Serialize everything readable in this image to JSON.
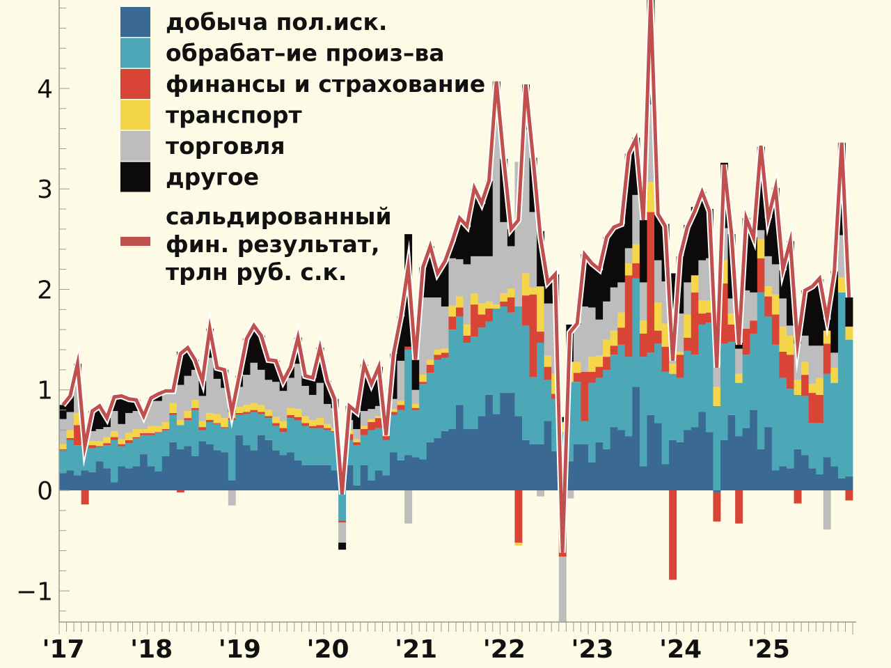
{
  "chart_data": {
    "type": "bar",
    "stacked": true,
    "title": "",
    "xlabel": "",
    "ylabel": "",
    "x_start": "2017-01",
    "x_end": "2025-12",
    "frequency": "monthly",
    "ylim": [
      -1.31,
      4.88
    ],
    "y_ticks": [
      -1,
      0,
      1,
      2,
      3,
      4
    ],
    "y_tick_labels": [
      "−1",
      "0",
      "1",
      "2",
      "3",
      "4"
    ],
    "x_tick_labels": [
      "'17",
      "'18",
      "'19",
      "'20",
      "'21",
      "'22",
      "'23",
      "'24",
      "'25"
    ],
    "grid": false,
    "legend_placement": "top-left",
    "background": "#fdfbe6",
    "series": [
      {
        "name": "добыча пол.иск.",
        "color": "#3a6a93",
        "values": [
          0.17,
          0.2,
          0.15,
          0.2,
          0.18,
          0.29,
          0.22,
          0.08,
          0.24,
          0.22,
          0.24,
          0.36,
          0.24,
          0.19,
          0.34,
          0.48,
          0.41,
          0.44,
          0.34,
          0.49,
          0.46,
          0.4,
          0.38,
          0.1,
          0.55,
          0.45,
          0.4,
          0.55,
          0.5,
          0.4,
          0.35,
          0.38,
          0.3,
          0.25,
          0.25,
          0.25,
          0.25,
          0.2,
          0.0,
          0.25,
          0.05,
          0.25,
          0.1,
          0.2,
          0.15,
          0.38,
          0.3,
          0.35,
          0.33,
          0.31,
          0.48,
          0.52,
          0.59,
          0.61,
          0.85,
          0.61,
          0.61,
          0.74,
          0.95,
          0.76,
          0.97,
          0.97,
          0.74,
          0.5,
          0.46,
          0.46,
          0.69,
          0.39,
          0.02,
          0.29,
          0.46,
          0.46,
          0.28,
          0.48,
          0.41,
          0.63,
          0.6,
          0.54,
          1.03,
          0.24,
          0.75,
          0.67,
          0.26,
          0.5,
          0.48,
          0.6,
          0.63,
          0.78,
          0.58,
          -0.02,
          0.5,
          0.75,
          0.54,
          0.62,
          0.8,
          0.41,
          0.63,
          0.2,
          0.24,
          0.22,
          0.41,
          0.35,
          0.22,
          0.16,
          0.33,
          0.24,
          0.12,
          0.14
        ]
      },
      {
        "name": "обрабат–ие произ–ва",
        "color": "#4ca7b7",
        "values": [
          0.22,
          0.3,
          0.3,
          0.24,
          0.24,
          0.14,
          0.23,
          0.42,
          0.2,
          0.25,
          0.28,
          0.19,
          0.31,
          0.38,
          0.26,
          0.27,
          0.24,
          0.26,
          0.46,
          0.11,
          0.22,
          0.26,
          0.24,
          0.6,
          0.2,
          0.31,
          0.38,
          0.21,
          0.22,
          0.24,
          0.23,
          0.34,
          0.4,
          0.39,
          0.37,
          0.37,
          0.35,
          0.38,
          -0.3,
          0.25,
          0.4,
          0.3,
          0.5,
          0.42,
          0.35,
          0.37,
          0.5,
          1.05,
          0.47,
          0.75,
          0.69,
          0.78,
          0.73,
          0.99,
          0.88,
          0.86,
          0.92,
          0.88,
          0.73,
          1.05,
          0.86,
          0.8,
          1.09,
          1.14,
          0.67,
          1.01,
          0.41,
          0.52,
          0.56,
          0.79,
          0.62,
          0.23,
          0.79,
          0.64,
          0.79,
          0.72,
          0.85,
          0.79,
          1.08,
          1.09,
          0.62,
          0.79,
          0.92,
          0.66,
          0.64,
          0.79,
          0.72,
          0.87,
          1.09,
          0.84,
          0.96,
          0.73,
          0.53,
          0.73,
          0.76,
          1.56,
          1.1,
          1.25,
          0.88,
          0.79,
          0.54,
          0.59,
          0.45,
          0.51,
          0.83,
          0.83,
          1.85,
          1.36
        ]
      },
      {
        "name": "финансы и страхование",
        "color": "#d84435",
        "values": [
          0.02,
          0.02,
          0.2,
          -0.14,
          0.03,
          0.01,
          0.02,
          0.03,
          0.02,
          0.03,
          0.01,
          0.02,
          0.02,
          0.01,
          0.01,
          0.02,
          -0.02,
          0.02,
          0.02,
          0.03,
          0.02,
          0.01,
          0.01,
          0.02,
          0.02,
          0.02,
          0.02,
          0.02,
          0.02,
          0.03,
          0.04,
          0.03,
          0.03,
          0.03,
          0.02,
          0.03,
          0.02,
          0.01,
          -0.02,
          0.06,
          0.03,
          0.06,
          0.08,
          0.1,
          0.04,
          0.03,
          0.05,
          0.03,
          0.02,
          0.02,
          0.08,
          0.05,
          0.05,
          0.13,
          0.09,
          0.07,
          0.32,
          0.13,
          0.13,
          0.0,
          0.05,
          0.15,
          -0.52,
          0.3,
          0.82,
          0.11,
          0.13,
          0.05,
          -0.66,
          0.0,
          0.09,
          0.49,
          0.11,
          0.11,
          0.13,
          0.09,
          0.17,
          0.81,
          0.15,
          0.23,
          1.4,
          0.13,
          0.25,
          -0.89,
          0.23,
          0.13,
          0.62,
          0.11,
          0.1,
          -0.29,
          0.6,
          0.17,
          -0.33,
          0.26,
          0.13,
          0.34,
          0.2,
          0.3,
          0.26,
          0.34,
          -0.13,
          0.21,
          0.3,
          0.28,
          0.3,
          0.0,
          0.0,
          -0.1
        ]
      },
      {
        "name": "транспорт",
        "color": "#f5d64a",
        "values": [
          0.05,
          0.08,
          0.12,
          0.03,
          0.04,
          0.05,
          0.06,
          0.06,
          0.05,
          0.07,
          0.08,
          0.04,
          0.07,
          0.06,
          0.07,
          0.1,
          0.05,
          0.07,
          0.08,
          0.06,
          0.07,
          0.09,
          0.09,
          0.06,
          0.06,
          0.07,
          0.07,
          0.07,
          0.06,
          0.06,
          0.07,
          0.07,
          0.08,
          0.07,
          0.06,
          0.07,
          0.04,
          0.03,
          0.0,
          0.04,
          0.03,
          0.03,
          0.03,
          0.02,
          0.03,
          0.03,
          0.04,
          0.0,
          0.04,
          0.07,
          0.05,
          0.05,
          0.04,
          0.11,
          0.11,
          0.11,
          0.11,
          0.11,
          0.07,
          0.04,
          0.08,
          0.09,
          -0.03,
          0.22,
          0.07,
          0.45,
          0.11,
          0.2,
          0.1,
          0.2,
          0.11,
          0.0,
          0.15,
          0.11,
          0.17,
          0.15,
          0.15,
          0.12,
          0.19,
          0.13,
          0.3,
          0.28,
          0.23,
          0.1,
          0.03,
          0.23,
          0.17,
          0.13,
          0.12,
          0.19,
          0.23,
          0.11,
          0.09,
          0.0,
          0.0,
          0.19,
          0.1,
          0.2,
          0.25,
          0.19,
          0.15,
          0.13,
          0.09,
          0.17,
          0.13,
          0.15,
          0.15,
          0.13
        ]
      },
      {
        "name": "торговля",
        "color": "#bdbdbd",
        "values": [
          0.25,
          0.18,
          0.3,
          0.11,
          0.1,
          0.12,
          0.1,
          0.2,
          0.15,
          0.2,
          0.18,
          0.13,
          0.25,
          0.25,
          0.3,
          0.12,
          0.35,
          0.35,
          0.3,
          0.25,
          0.55,
          0.35,
          0.3,
          -0.15,
          0.2,
          0.3,
          0.4,
          0.35,
          0.3,
          0.35,
          0.3,
          0.3,
          0.45,
          0.3,
          0.25,
          0.35,
          0.2,
          0.2,
          -0.2,
          0.1,
          0.1,
          0.15,
          0.1,
          0.1,
          0.0,
          0.1,
          0.4,
          -0.33,
          0.14,
          0.77,
          0.62,
          0.52,
          0.42,
          0.47,
          0.37,
          0.6,
          0.37,
          0.47,
          0.45,
          2.0,
          0.71,
          0.42,
          1.44,
          1.43,
          0.75,
          -0.06,
          0.52,
          0.7,
          -0.65,
          -0.08,
          0.37,
          0.65,
          0.49,
          0.36,
          0.38,
          0.43,
          0.3,
          0.15,
          0.49,
          0.38,
          0.77,
          0.42,
          0.42,
          0.4,
          0.38,
          0.32,
          0.0,
          0.4,
          0.42,
          0.21,
          0.32,
          0.15,
          0.25,
          0.38,
          0.28,
          0.09,
          0.3,
          0.3,
          0.28,
          0.1,
          0.36,
          0.26,
          0.38,
          0.32,
          -0.39,
          0.15,
          0.42,
          0.0
        ]
      },
      {
        "name": "другое",
        "color": "#0c0a0a",
        "values": [
          0.14,
          0.16,
          0.19,
          0.0,
          0.2,
          0.23,
          0.09,
          0.14,
          0.28,
          0.14,
          0.11,
          0.0,
          0.03,
          0.07,
          0.01,
          0.0,
          0.33,
          0.28,
          0.1,
          0.15,
          0.29,
          0.11,
          0.18,
          0.15,
          0.11,
          0.36,
          0.37,
          0.34,
          0.2,
          0.21,
          0.1,
          0.11,
          0.26,
          0.1,
          0.17,
          0.35,
          0.23,
          0.09,
          -0.07,
          0.14,
          0.17,
          0.46,
          0.25,
          0.39,
          0.0,
          0.45,
          0.44,
          1.12,
          0.3,
          0.3,
          0.51,
          0.24,
          0.45,
          0.17,
          0.39,
          0.37,
          0.67,
          0.52,
          0.75,
          0.22,
          0.63,
          0.17,
          0.0,
          0.45,
          0.54,
          0.55,
          0.21,
          0.29,
          0.05,
          0.37,
          0.01,
          0.52,
          0.43,
          0.49,
          0.64,
          0.58,
          0.58,
          0.94,
          0.57,
          0.62,
          1.06,
          0.45,
          0.57,
          0.5,
          0.57,
          0.57,
          0.68,
          0.68,
          0.49,
          0.0,
          0.65,
          0.64,
          0.06,
          0.72,
          0.55,
          0.83,
          0.38,
          0.76,
          0.28,
          0.84,
          0.13,
          0.45,
          0.58,
          0.66,
          0.11,
          0.81,
          0.92,
          0.29
        ]
      }
    ],
    "line_series": {
      "name_lines": [
        "сальдированный",
        "фин. результат,",
        "трлн руб. с.к."
      ],
      "color": "#c0504d",
      "outline_color": "#ffffff",
      "values": [
        0.85,
        0.94,
        1.26,
        0.44,
        0.79,
        0.84,
        0.72,
        0.93,
        0.94,
        0.91,
        0.9,
        0.74,
        0.92,
        0.96,
        0.99,
        0.99,
        1.36,
        1.42,
        1.3,
        1.09,
        1.61,
        1.22,
        1.2,
        0.78,
        1.14,
        1.51,
        1.64,
        1.54,
        1.3,
        1.29,
        1.09,
        1.23,
        1.52,
        1.14,
        1.12,
        1.42,
        1.09,
        0.91,
        -0.04,
        0.84,
        0.78,
        1.25,
        1.06,
        1.23,
        0.55,
        1.36,
        1.73,
        2.22,
        1.3,
        2.22,
        2.43,
        2.16,
        2.28,
        2.48,
        2.71,
        2.63,
        3.01,
        2.86,
        3.08,
        4.07,
        3.3,
        2.6,
        2.69,
        4.04,
        3.31,
        2.52,
        2.07,
        2.15,
        -0.62,
        1.57,
        1.66,
        2.35,
        2.26,
        2.2,
        2.52,
        2.62,
        2.65,
        3.35,
        3.5,
        2.69,
        4.89,
        2.75,
        2.63,
        1.29,
        2.33,
        2.62,
        2.78,
        2.97,
        2.78,
        1.22,
        3.24,
        2.56,
        1.45,
        2.71,
        2.52,
        3.43,
        2.71,
        3.01,
        2.2,
        2.48,
        1.46,
        1.99,
        2.03,
        2.11,
        1.71,
        2.18,
        3.46,
        1.92
      ]
    }
  }
}
